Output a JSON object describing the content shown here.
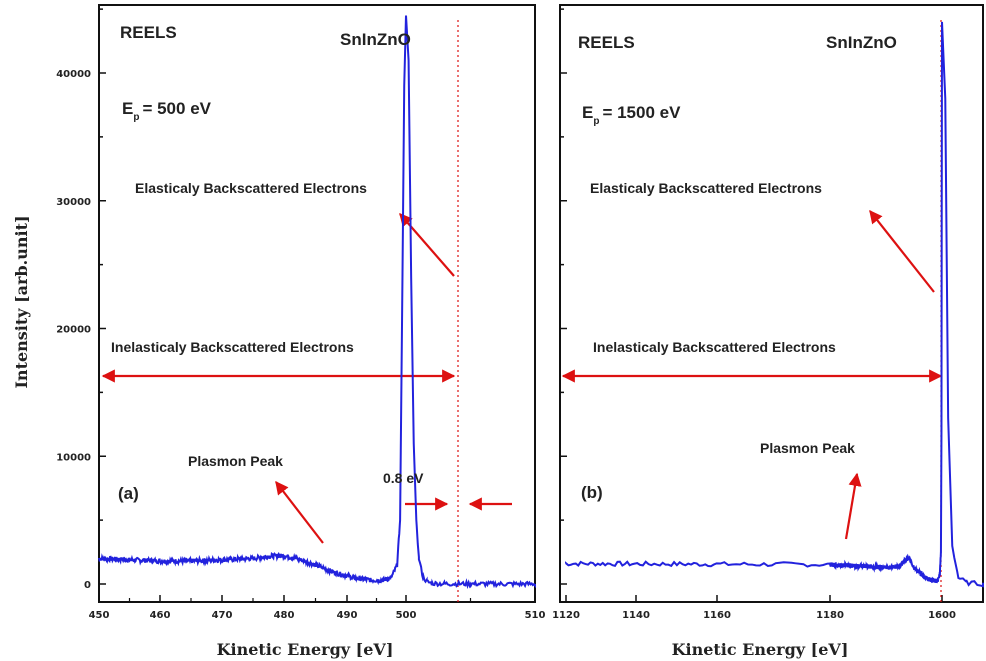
{
  "chart_data": [
    {
      "type": "line",
      "panel_label": "(a)",
      "technique": "REELS",
      "sample": "SnInZnO",
      "ep_symbol": "E",
      "ep_subscript": "p",
      "ep_value": "= 500 eV",
      "xlabel": "Kinetic Energy [eV]",
      "ylabel": "Intensity [arb.unit]",
      "xlim": [
        450,
        510
      ],
      "ylim": [
        -1000,
        45000
      ],
      "x_ticks": [
        450,
        460,
        470,
        480,
        490,
        500,
        510
      ],
      "x_tick_labels": [
        "450",
        "460",
        "470",
        "480",
        "490",
        "500",
        "510"
      ],
      "y_ticks": [
        0,
        10000,
        20000,
        30000,
        40000
      ],
      "y_tick_labels": [
        "0",
        "10000",
        "20000",
        "30000",
        "40000"
      ],
      "series_color": "#2222dd",
      "series": [
        {
          "x": [
            450,
            455,
            460,
            465,
            470,
            475,
            478,
            480,
            482,
            485,
            488,
            491,
            494,
            496,
            497.5,
            498.5,
            499.0,
            499.4,
            499.7,
            500.0,
            500.2,
            500.4,
            500.6,
            500.8,
            501.0,
            501.3,
            501.6,
            502,
            503,
            505,
            510
          ],
          "y": [
            2000,
            1900,
            1800,
            1800,
            1900,
            2000,
            2200,
            2200,
            2000,
            1500,
            900,
            500,
            300,
            300,
            500,
            1500,
            5000,
            24000,
            39000,
            44500,
            41000,
            24000,
            11000,
            5000,
            2000,
            600,
            200,
            50,
            20,
            10,
            0
          ]
        }
      ],
      "annotations": {
        "elastic": "Elasticaly Backscattered Electrons",
        "inelastic": "Inelasticaly Backscattered Electrons",
        "plasmon": "Plasmon Peak",
        "fwhm": "0.8 eV"
      },
      "arrow_color": "#dd1111"
    },
    {
      "type": "line",
      "panel_label": "(b)",
      "technique": "REELS",
      "sample": "SnInZnO",
      "ep_symbol": "E",
      "ep_subscript": "p",
      "ep_value": "= 1500 eV",
      "xlabel": "Kinetic Energy [eV]",
      "ylabel": "",
      "xlim": [
        1120,
        1610
      ],
      "ylim": [
        -1000,
        45000
      ],
      "x_ticks": [
        1120,
        1140,
        1160,
        1180,
        1600
      ],
      "x_tick_labels": [
        "1120",
        "1140",
        "1160",
        "1180",
        "1600"
      ],
      "series_color": "#2222dd",
      "series": [
        {
          "x": [
            1120,
            1200,
            1300,
            1400,
            1440,
            1460,
            1470,
            1480,
            1490,
            1500,
            1520,
            1540,
            1560,
            1575,
            1585,
            1592,
            1596,
            1598,
            1599,
            1600,
            1600.8,
            1601.5,
            1602.5,
            1604,
            1606,
            1610
          ],
          "y": [
            1600,
            1500,
            1400,
            1300,
            1400,
            1800,
            2000,
            1900,
            1500,
            1200,
            800,
            500,
            300,
            250,
            300,
            800,
            2500,
            12000,
            30000,
            44000,
            38000,
            13000,
            3000,
            500,
            100,
            0
          ]
        }
      ],
      "annotations": {
        "elastic": "Elasticaly Backscattered Electrons",
        "inelastic": "Inelasticaly Backscattered Electrons",
        "plasmon": "Plasmon Peak"
      },
      "arrow_color": "#dd1111"
    }
  ]
}
